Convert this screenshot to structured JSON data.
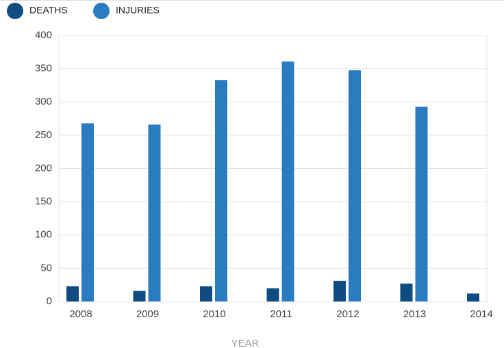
{
  "chart_data": {
    "type": "bar",
    "x_label": "YEAR",
    "categories": [
      "2008",
      "2009",
      "2010",
      "2011",
      "2012",
      "2013",
      "2014"
    ],
    "series": [
      {
        "name": "DEATHS",
        "color": "#0f4c81",
        "values": [
          23,
          16,
          23,
          20,
          31,
          27,
          12
        ]
      },
      {
        "name": "INJURIES",
        "color": "#2a7bbf",
        "values": [
          268,
          266,
          333,
          361,
          348,
          293,
          null
        ]
      }
    ],
    "ylim": [
      0,
      400
    ],
    "yticks": [
      0,
      50,
      100,
      150,
      200,
      250,
      300,
      350,
      400
    ],
    "grid": true
  }
}
